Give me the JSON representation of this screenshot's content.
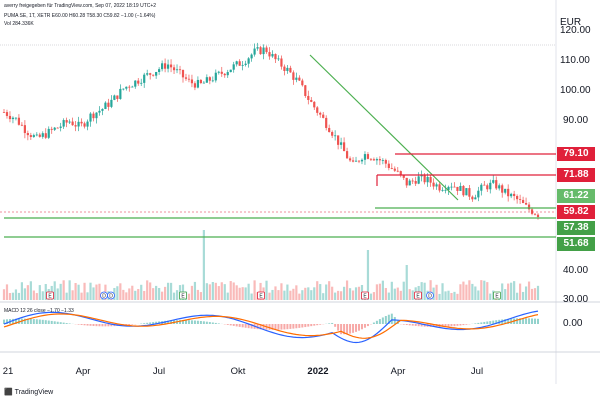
{
  "header": {
    "line1": "averry freigegeben für TradingView.com, Sep 07, 2022 18:19 UTC+2",
    "line2": "PUMA SE, 1T, XETR  E60.00  H60.28  T58.30  C59.82  −1.00 (−1.64%)",
    "line3": "Vol  284.336K"
  },
  "currency_label": "EUR",
  "price_axis": [
    "120.00",
    "110.00",
    "100.00",
    "90.00",
    "40.00",
    "30.00"
  ],
  "macd": {
    "label": "MACD  12  26  close  −1.70  −1.33",
    "zero_label": "0.00"
  },
  "level_tags": [
    {
      "value": "79.10",
      "kind": "red"
    },
    {
      "value": "71.88",
      "kind": "red"
    },
    {
      "value": "61.22",
      "kind": "green"
    },
    {
      "value": "59.82",
      "kind": "red"
    },
    {
      "value": "57.38",
      "kind": "green"
    },
    {
      "value": "51.68",
      "kind": "green"
    }
  ],
  "x_axis": [
    "21",
    "Apr",
    "Jul",
    "Okt",
    "2022",
    "Apr",
    "Jul"
  ],
  "event_markers": [
    "E",
    "D",
    "D",
    "E",
    "E",
    "E",
    "E",
    "D",
    "E"
  ],
  "footer": "TradingView",
  "colors": {
    "up": "#26a69a",
    "down": "#ef5350",
    "trendline": "#4caf50",
    "resistance": "#e0203a",
    "support": "#43a047",
    "macd_line": "#2962ff",
    "signal_line": "#ff6d00"
  },
  "chart_data": {
    "type": "candlestick",
    "series": [
      {
        "name": "PUMA SE",
        "values": [
          94,
          92,
          88,
          85,
          87,
          89,
          91,
          89,
          93,
          95,
          98,
          102,
          104,
          106,
          108,
          110,
          107,
          104,
          103,
          105,
          107,
          109,
          111,
          114,
          115,
          111,
          108,
          104,
          98,
          93,
          88,
          82,
          76,
          80,
          79,
          77,
          74,
          70,
          72,
          71,
          69,
          70,
          68,
          66,
          69,
          70,
          67,
          65,
          62,
          60
        ]
      }
    ],
    "levels": [
      79.1,
      71.88,
      61.22,
      59.82,
      57.38,
      51.68
    ]
  }
}
